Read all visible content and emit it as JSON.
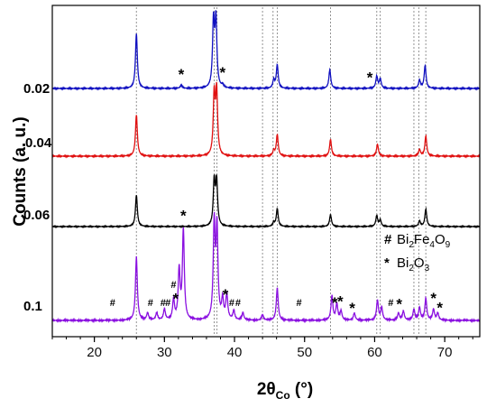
{
  "chart_data": {
    "type": "line",
    "xlabel": "2θ",
    "xlabel_sub": "Co",
    "xlabel_unit": " (°)",
    "ylabel": "Counts (a. u.)",
    "xlim": [
      14,
      75
    ],
    "xticks": [
      20,
      30,
      40,
      50,
      60,
      70
    ],
    "minor_step": 2,
    "grid": false,
    "reference_lines": [
      26.0,
      37.1,
      37.5,
      44.0,
      45.5,
      46.1,
      53.7,
      60.3,
      60.8,
      65.6,
      66.3,
      67.3
    ],
    "series": [
      {
        "name": "0.02",
        "color": "#1010c0",
        "peaks": [
          [
            26.0,
            0.82
          ],
          [
            37.0,
            0.98
          ],
          [
            37.35,
            1.0
          ],
          [
            45.6,
            0.12
          ],
          [
            46.1,
            0.35
          ],
          [
            53.6,
            0.28
          ],
          [
            60.3,
            0.18
          ],
          [
            60.8,
            0.14
          ],
          [
            66.4,
            0.12
          ],
          [
            67.2,
            0.34
          ],
          [
            32.4,
            0.05
          ],
          [
            38.3,
            0.04
          ]
        ]
      },
      {
        "name": "0.04",
        "color": "#e01010",
        "peaks": [
          [
            26.0,
            0.62
          ],
          [
            37.1,
            0.9
          ],
          [
            37.45,
            0.95
          ],
          [
            45.6,
            0.08
          ],
          [
            46.1,
            0.32
          ],
          [
            53.7,
            0.25
          ],
          [
            60.4,
            0.18
          ],
          [
            66.4,
            0.1
          ],
          [
            67.3,
            0.3
          ]
        ]
      },
      {
        "name": "0.06",
        "color": "#000000",
        "peaks": [
          [
            26.0,
            0.58
          ],
          [
            37.1,
            0.82
          ],
          [
            37.45,
            0.82
          ],
          [
            45.6,
            0.07
          ],
          [
            46.1,
            0.33
          ],
          [
            53.7,
            0.22
          ],
          [
            60.3,
            0.2
          ],
          [
            60.8,
            0.12
          ],
          [
            66.4,
            0.1
          ],
          [
            67.3,
            0.32
          ]
        ]
      },
      {
        "name": "0.1",
        "color": "#8a10e0",
        "peaks": [
          [
            26.0,
            0.7
          ],
          [
            27.6,
            0.08
          ],
          [
            28.9,
            0.08
          ],
          [
            30.0,
            0.12
          ],
          [
            31.3,
            0.22
          ],
          [
            32.1,
            0.55
          ],
          [
            32.7,
            1.0
          ],
          [
            37.1,
            1.05
          ],
          [
            37.5,
            1.0
          ],
          [
            38.3,
            0.22
          ],
          [
            38.9,
            0.28
          ],
          [
            39.9,
            0.1
          ],
          [
            41.2,
            0.08
          ],
          [
            44.0,
            0.06
          ],
          [
            46.1,
            0.36
          ],
          [
            53.9,
            0.27
          ],
          [
            54.6,
            0.18
          ],
          [
            55.2,
            0.1
          ],
          [
            57.1,
            0.08
          ],
          [
            60.4,
            0.22
          ],
          [
            61.0,
            0.14
          ],
          [
            63.4,
            0.08
          ],
          [
            64.1,
            0.1
          ],
          [
            65.6,
            0.12
          ],
          [
            66.4,
            0.14
          ],
          [
            67.3,
            0.24
          ],
          [
            68.4,
            0.12
          ],
          [
            69.0,
            0.08
          ]
        ]
      }
    ],
    "impurity_markers": [
      {
        "series": "0.02",
        "symbol": "*",
        "positions": [
          32.4,
          38.3,
          59.3
        ]
      },
      {
        "series": "0.1",
        "symbol": "#",
        "positions": [
          22.6,
          28.0,
          29.8,
          30.5,
          31.3,
          39.6,
          40.5,
          49.2,
          62.3
        ]
      },
      {
        "series": "0.1",
        "symbol": "*",
        "positions": [
          31.6,
          32.7,
          38.7,
          54.3,
          55.1,
          56.8,
          63.5,
          68.4,
          69.3
        ]
      }
    ],
    "legend": {
      "position": "right",
      "entries": [
        {
          "symbol": "#",
          "label": "Bi",
          "parts": [
            [
              "Bi",
              ""
            ],
            [
              "2",
              "sub"
            ],
            [
              "Fe",
              ""
            ],
            [
              "4",
              "sub"
            ],
            [
              "O",
              ""
            ],
            [
              "9",
              "sub"
            ]
          ]
        },
        {
          "symbol": "*",
          "label": "Bi2O3",
          "parts": [
            [
              "Bi",
              ""
            ],
            [
              "2",
              "sub"
            ],
            [
              "O",
              ""
            ],
            [
              "3",
              "sub"
            ]
          ]
        }
      ]
    }
  }
}
